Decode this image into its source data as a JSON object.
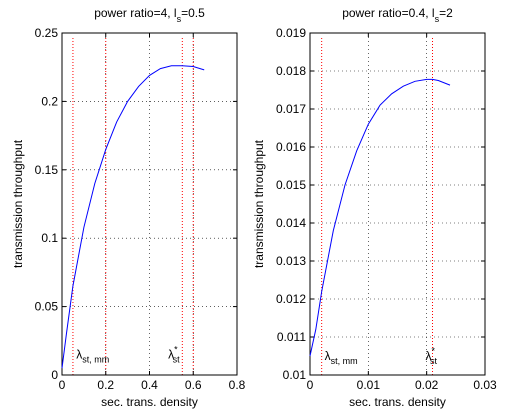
{
  "chart_data": [
    {
      "type": "line",
      "title": "power ratio=4, l",
      "title_sub": "s",
      "title_tail": "=0.5",
      "xlabel": "sec. trans. density",
      "ylabel": "transmission throughput",
      "xlim": [
        0,
        0.8
      ],
      "ylim": [
        0,
        0.25
      ],
      "xticks": [
        0,
        0.2,
        0.4,
        0.6,
        0.8
      ],
      "xtick_labels": [
        "0",
        "0.2",
        "0.4",
        "0.6",
        "0.8"
      ],
      "yticks": [
        0,
        0.05,
        0.1,
        0.15,
        0.2,
        0.25
      ],
      "ytick_labels": [
        "0",
        "0.05",
        "0.1",
        "0.15",
        "0.2",
        "0.25"
      ],
      "grid": true,
      "line_color": "#0000ff",
      "marker_color": "#ff0000",
      "series": [
        {
          "x": [
            0,
            0.02,
            0.05,
            0.1,
            0.15,
            0.2,
            0.25,
            0.3,
            0.35,
            0.4,
            0.45,
            0.5,
            0.55,
            0.6,
            0.65
          ],
          "y": [
            0.005,
            0.03,
            0.065,
            0.108,
            0.14,
            0.165,
            0.185,
            0.2,
            0.211,
            0.219,
            0.224,
            0.226,
            0.226,
            0.2255,
            0.223
          ]
        }
      ],
      "vlines": [
        0.05,
        0.2,
        0.55,
        0.6
      ],
      "annotations": [
        {
          "text": "λ",
          "sub": "st, mm",
          "sup": "",
          "x": 0.065,
          "y": 0.012
        },
        {
          "text": "λ",
          "sub": "st",
          "sup": "*",
          "x": 0.485,
          "y": 0.012
        }
      ]
    },
    {
      "type": "line",
      "title": "power ratio=0.4, l",
      "title_sub": "s",
      "title_tail": "=2",
      "xlabel": "sec. trans. density",
      "ylabel": "transmission throughput",
      "xlim": [
        0,
        0.03
      ],
      "ylim": [
        0.01,
        0.019
      ],
      "xticks": [
        0,
        0.01,
        0.02,
        0.03
      ],
      "xtick_labels": [
        "0",
        "0.01",
        "0.02",
        "0.03"
      ],
      "yticks": [
        0.01,
        0.011,
        0.012,
        0.013,
        0.014,
        0.015,
        0.016,
        0.017,
        0.018,
        0.019
      ],
      "ytick_labels": [
        "0.01",
        "0.011",
        "0.012",
        "0.013",
        "0.014",
        "0.015",
        "0.016",
        "0.017",
        "0.018",
        "0.019"
      ],
      "grid": true,
      "line_color": "#0000ff",
      "marker_color": "#ff0000",
      "series": [
        {
          "x": [
            0,
            0.001,
            0.002,
            0.004,
            0.006,
            0.008,
            0.01,
            0.012,
            0.014,
            0.016,
            0.018,
            0.02,
            0.021,
            0.022,
            0.024
          ],
          "y": [
            0.0105,
            0.0112,
            0.0122,
            0.0138,
            0.015,
            0.0159,
            0.0166,
            0.0171,
            0.0174,
            0.0176,
            0.01773,
            0.01778,
            0.01778,
            0.01775,
            0.01763
          ]
        }
      ],
      "vlines": [
        0.002,
        0.021
      ],
      "annotations": [
        {
          "text": "λ",
          "sub": "st, mm",
          "sup": "",
          "x": 0.0025,
          "y": 0.0104
        },
        {
          "text": "λ",
          "sub": "st",
          "sup": "*",
          "x": 0.0198,
          "y": 0.0104
        }
      ]
    }
  ]
}
